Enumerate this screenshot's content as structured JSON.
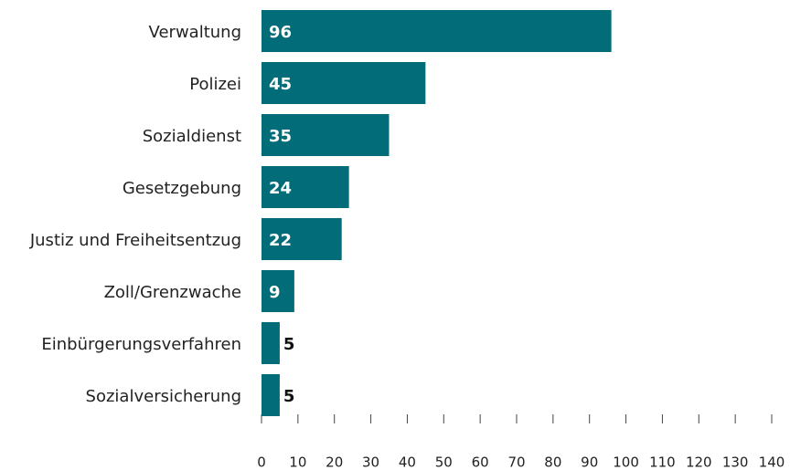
{
  "chart_data": {
    "type": "bar",
    "orientation": "horizontal",
    "categories": [
      "Verwaltung",
      "Polizei",
      "Sozialdienst",
      "Gesetzgebung",
      "Justiz und Freiheitsentzug",
      "Zoll/Grenzwache",
      "Einbürgerungsverfahren",
      "Sozialversicherung"
    ],
    "values": [
      96,
      45,
      35,
      24,
      22,
      9,
      5,
      5
    ],
    "color": "#026c78",
    "xlim": [
      0,
      140
    ],
    "xticks": [
      0,
      10,
      20,
      30,
      40,
      50,
      60,
      70,
      80,
      90,
      100,
      110,
      120,
      130,
      140
    ]
  }
}
